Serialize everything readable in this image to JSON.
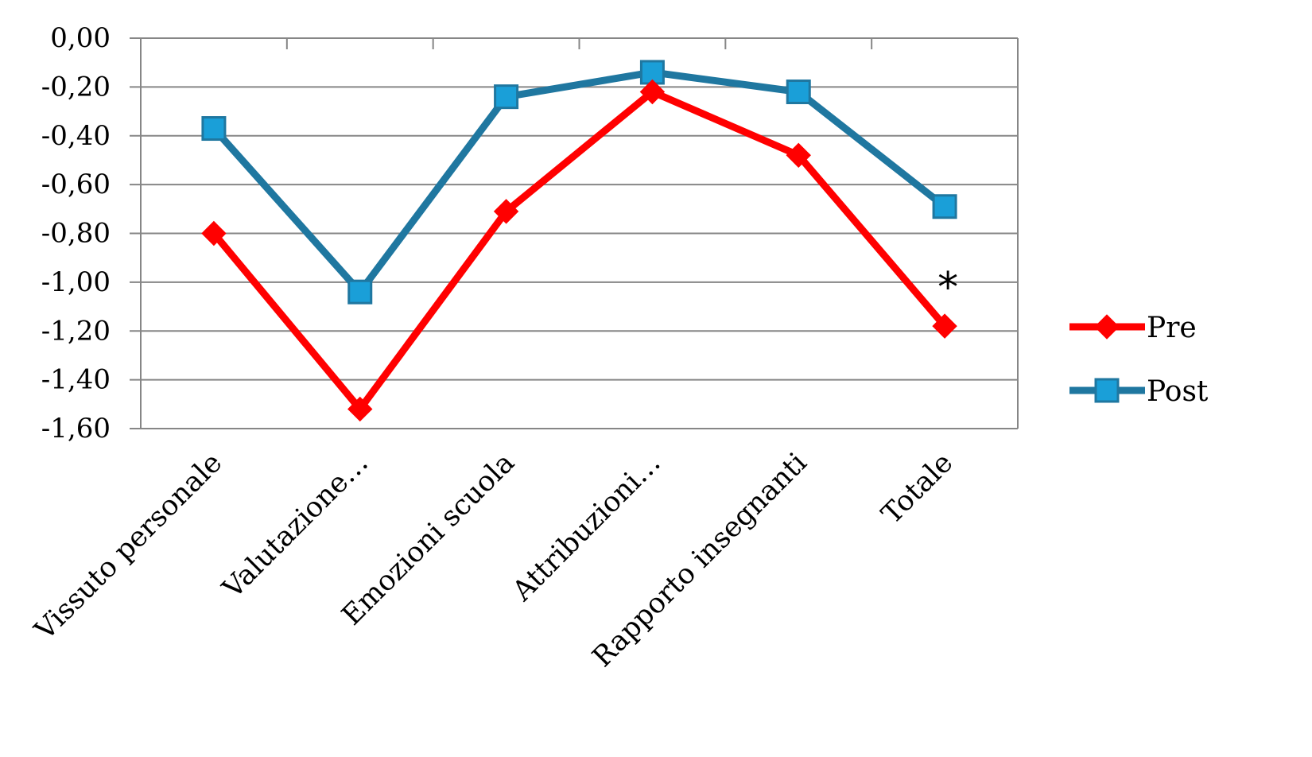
{
  "chart_data": {
    "type": "line",
    "title": "",
    "xlabel": "",
    "ylabel": "",
    "categories": [
      "Vissuto personale",
      "Valutazione…",
      "Emozioni scuola",
      "Attribuzioni…",
      "Rapporto insegnanti",
      "Totale"
    ],
    "series": [
      {
        "name": "Pre",
        "color": "#ff0000",
        "marker": "diamond",
        "values": [
          -0.8,
          -1.52,
          -0.71,
          -0.22,
          -0.48,
          -1.18
        ]
      },
      {
        "name": "Post",
        "color": "#1f77a0",
        "marker_fill": "#1a9fd8",
        "marker": "square",
        "values": [
          -0.37,
          -1.04,
          -0.24,
          -0.14,
          -0.22,
          -0.69
        ]
      }
    ],
    "ylim": [
      -1.6,
      0.0
    ],
    "yticks": [
      "0,00",
      "-0,20",
      "-0,40",
      "-0,60",
      "-0,80",
      "-1,00",
      "-1,20",
      "-1,40",
      "-1,60"
    ],
    "grid": true,
    "legend_position": "right",
    "annotation": {
      "text": "*",
      "category": "Totale",
      "value": -1.0
    }
  }
}
